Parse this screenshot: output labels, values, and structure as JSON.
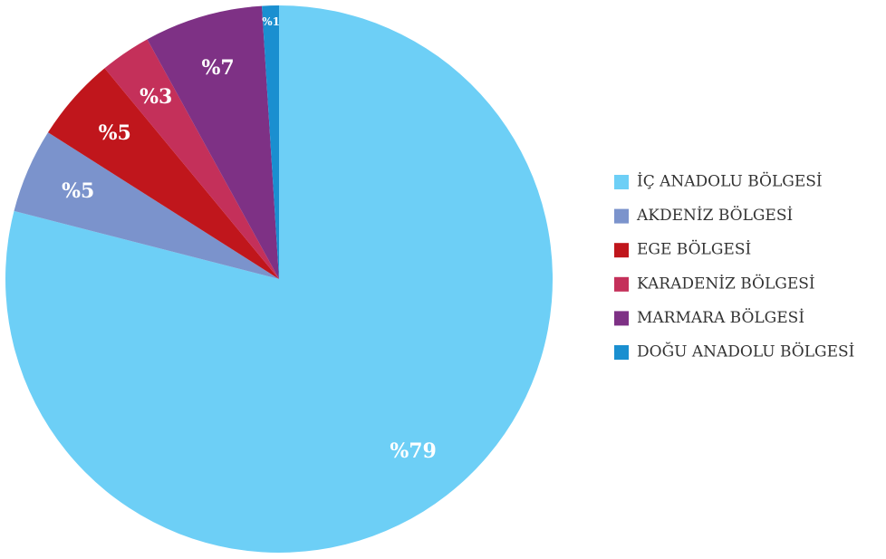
{
  "chart_data": {
    "type": "pie",
    "categories": [
      "İÇ ANADOLU BÖLGESİ",
      "AKDENİZ BÖLGESİ",
      "EGE BÖLGESİ",
      "KARADENİZ BÖLGESİ",
      "MARMARA BÖLGESİ",
      "DOĞU ANADOLU BÖLGESİ"
    ],
    "values": [
      79,
      5,
      5,
      3,
      7,
      1
    ],
    "value_labels": [
      "%79",
      "%5",
      "%5",
      "%3",
      "%7",
      "%1"
    ],
    "colors": [
      "#6dcff6",
      "#7b93cc",
      "#c0161c",
      "#c4305a",
      "#7e3185",
      "#1a8fd0"
    ],
    "legend": "right"
  }
}
